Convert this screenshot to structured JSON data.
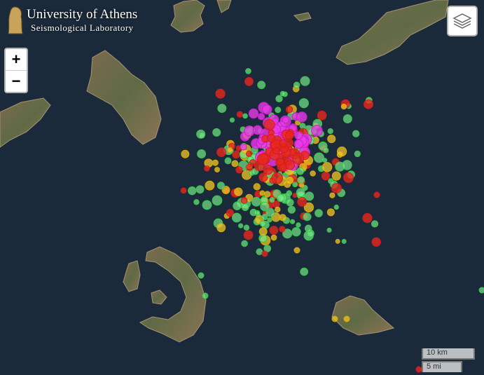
{
  "logo": {
    "title": "University of Athens",
    "subtitle": "Seismological Laboratory"
  },
  "zoom": {
    "in": "+",
    "out": "−"
  },
  "scale": {
    "metric": "10 km",
    "imperial": "5 mi"
  }
}
